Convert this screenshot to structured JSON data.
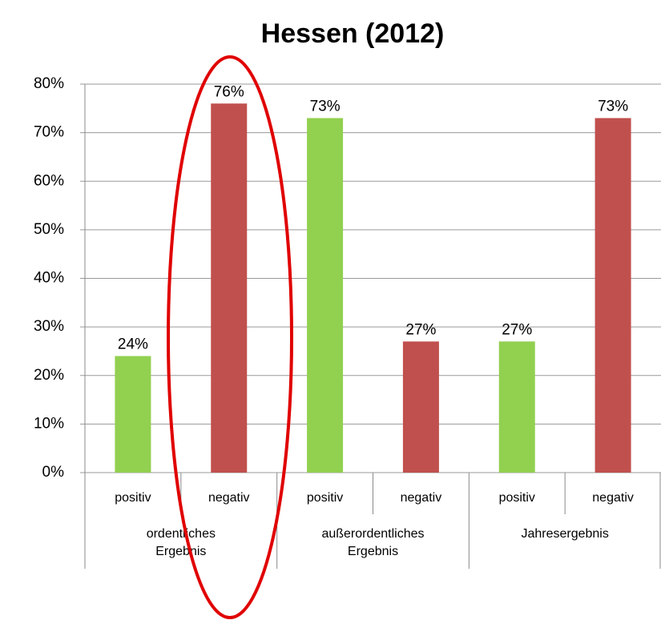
{
  "chart_data": {
    "type": "bar",
    "title": "Hessen (2012)",
    "categories": [
      "positiv",
      "negativ",
      "positiv",
      "negativ",
      "positiv",
      "negativ"
    ],
    "groups": [
      "ordentliches Ergebnis",
      "außerordentliches Ergebnis",
      "Jahresergebnis"
    ],
    "values": [
      24,
      76,
      73,
      27,
      27,
      73
    ],
    "value_labels": [
      "24%",
      "76%",
      "73%",
      "27%",
      "27%",
      "73%"
    ],
    "colors": [
      "#92d050",
      "#c0504d",
      "#92d050",
      "#c0504d",
      "#92d050",
      "#c0504d"
    ],
    "ylim": [
      0,
      80
    ],
    "yticks": [
      {
        "value": 0,
        "label": "0%"
      },
      {
        "value": 10,
        "label": "10%"
      },
      {
        "value": 20,
        "label": "20%"
      },
      {
        "value": 30,
        "label": "30%"
      },
      {
        "value": 40,
        "label": "40%"
      },
      {
        "value": 50,
        "label": "50%"
      },
      {
        "value": 60,
        "label": "60%"
      },
      {
        "value": 70,
        "label": "70%"
      },
      {
        "value": 80,
        "label": "80%"
      }
    ],
    "grid": true
  }
}
